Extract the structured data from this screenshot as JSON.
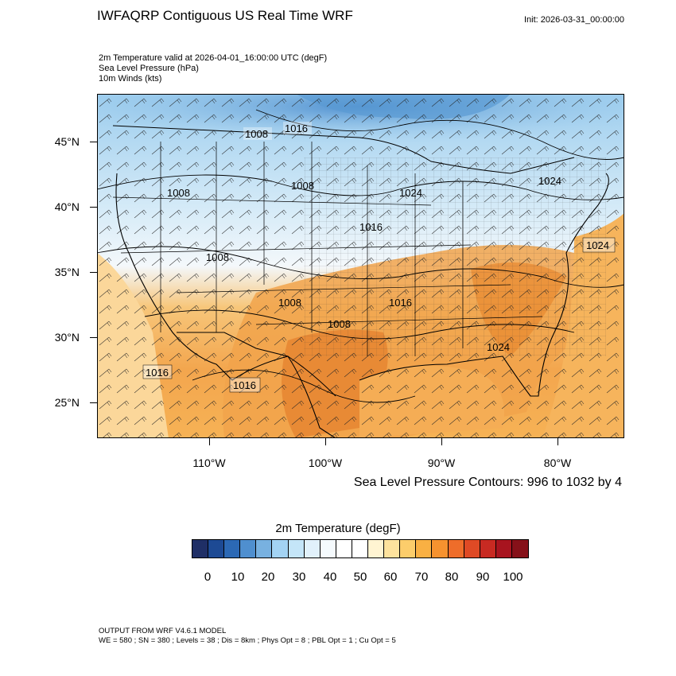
{
  "header": {
    "title": "IWFAQRP Contiguous US Real Time WRF",
    "init": "Init: 2026-03-31_00:00:00",
    "lines": [
      "2m Temperature valid at 2026-04-01_16:00:00 UTC   (degF)",
      "Sea Level Pressure   (hPa)",
      "10m Winds   (kts)"
    ]
  },
  "map": {
    "lat_labels": [
      "45°N",
      "40°N",
      "35°N",
      "30°N",
      "25°N"
    ],
    "lon_labels": [
      "110°W",
      "100°W",
      "90°W",
      "80°W"
    ],
    "pressure_labels": [
      {
        "text": "1008"
      },
      {
        "text": "1016"
      },
      {
        "text": "1008"
      },
      {
        "text": "1008"
      },
      {
        "text": "1024"
      },
      {
        "text": "1024"
      },
      {
        "text": "1016"
      },
      {
        "text": "1008"
      },
      {
        "text": "1024"
      },
      {
        "text": "1008"
      },
      {
        "text": "1016"
      },
      {
        "text": "1008"
      },
      {
        "text": "1024"
      },
      {
        "text": "1016"
      },
      {
        "text": "1016"
      }
    ],
    "colors": {
      "cold": "#5ba3d6",
      "cool": "#a9d4f0",
      "white": "#f2f7fb",
      "warm": "#fcd27a",
      "orange": "#f5a546",
      "hot": "#e0772c",
      "ocean_warm": "#f9c566"
    }
  },
  "contour_note": "Sea Level Pressure Contours: 996 to 1032 by 4",
  "colorbar": {
    "title": "2m Temperature  (degF)",
    "colors": [
      "#1f2f66",
      "#1d4a94",
      "#2c69b5",
      "#4f8fcf",
      "#78b1e0",
      "#a3d3f3",
      "#c4e5f8",
      "#e1f1fb",
      "#f5fafd",
      "#ffffff",
      "#ffffff",
      "#fff4d2",
      "#fde29d",
      "#fccd6b",
      "#f9b043",
      "#f6922f",
      "#ee6d2a",
      "#df4a25",
      "#c82a22",
      "#a8141f",
      "#861119"
    ],
    "ticks": [
      "0",
      "10",
      "20",
      "30",
      "40",
      "50",
      "60",
      "70",
      "80",
      "90",
      "100"
    ]
  },
  "footer": {
    "line1": "OUTPUT FROM WRF V4.6.1 MODEL",
    "line2": "WE = 580 ; SN = 380 ; Levels = 38 ; Dis = 8km ; Phys Opt = 8 ; PBL Opt = 1 ; Cu Opt = 5"
  }
}
